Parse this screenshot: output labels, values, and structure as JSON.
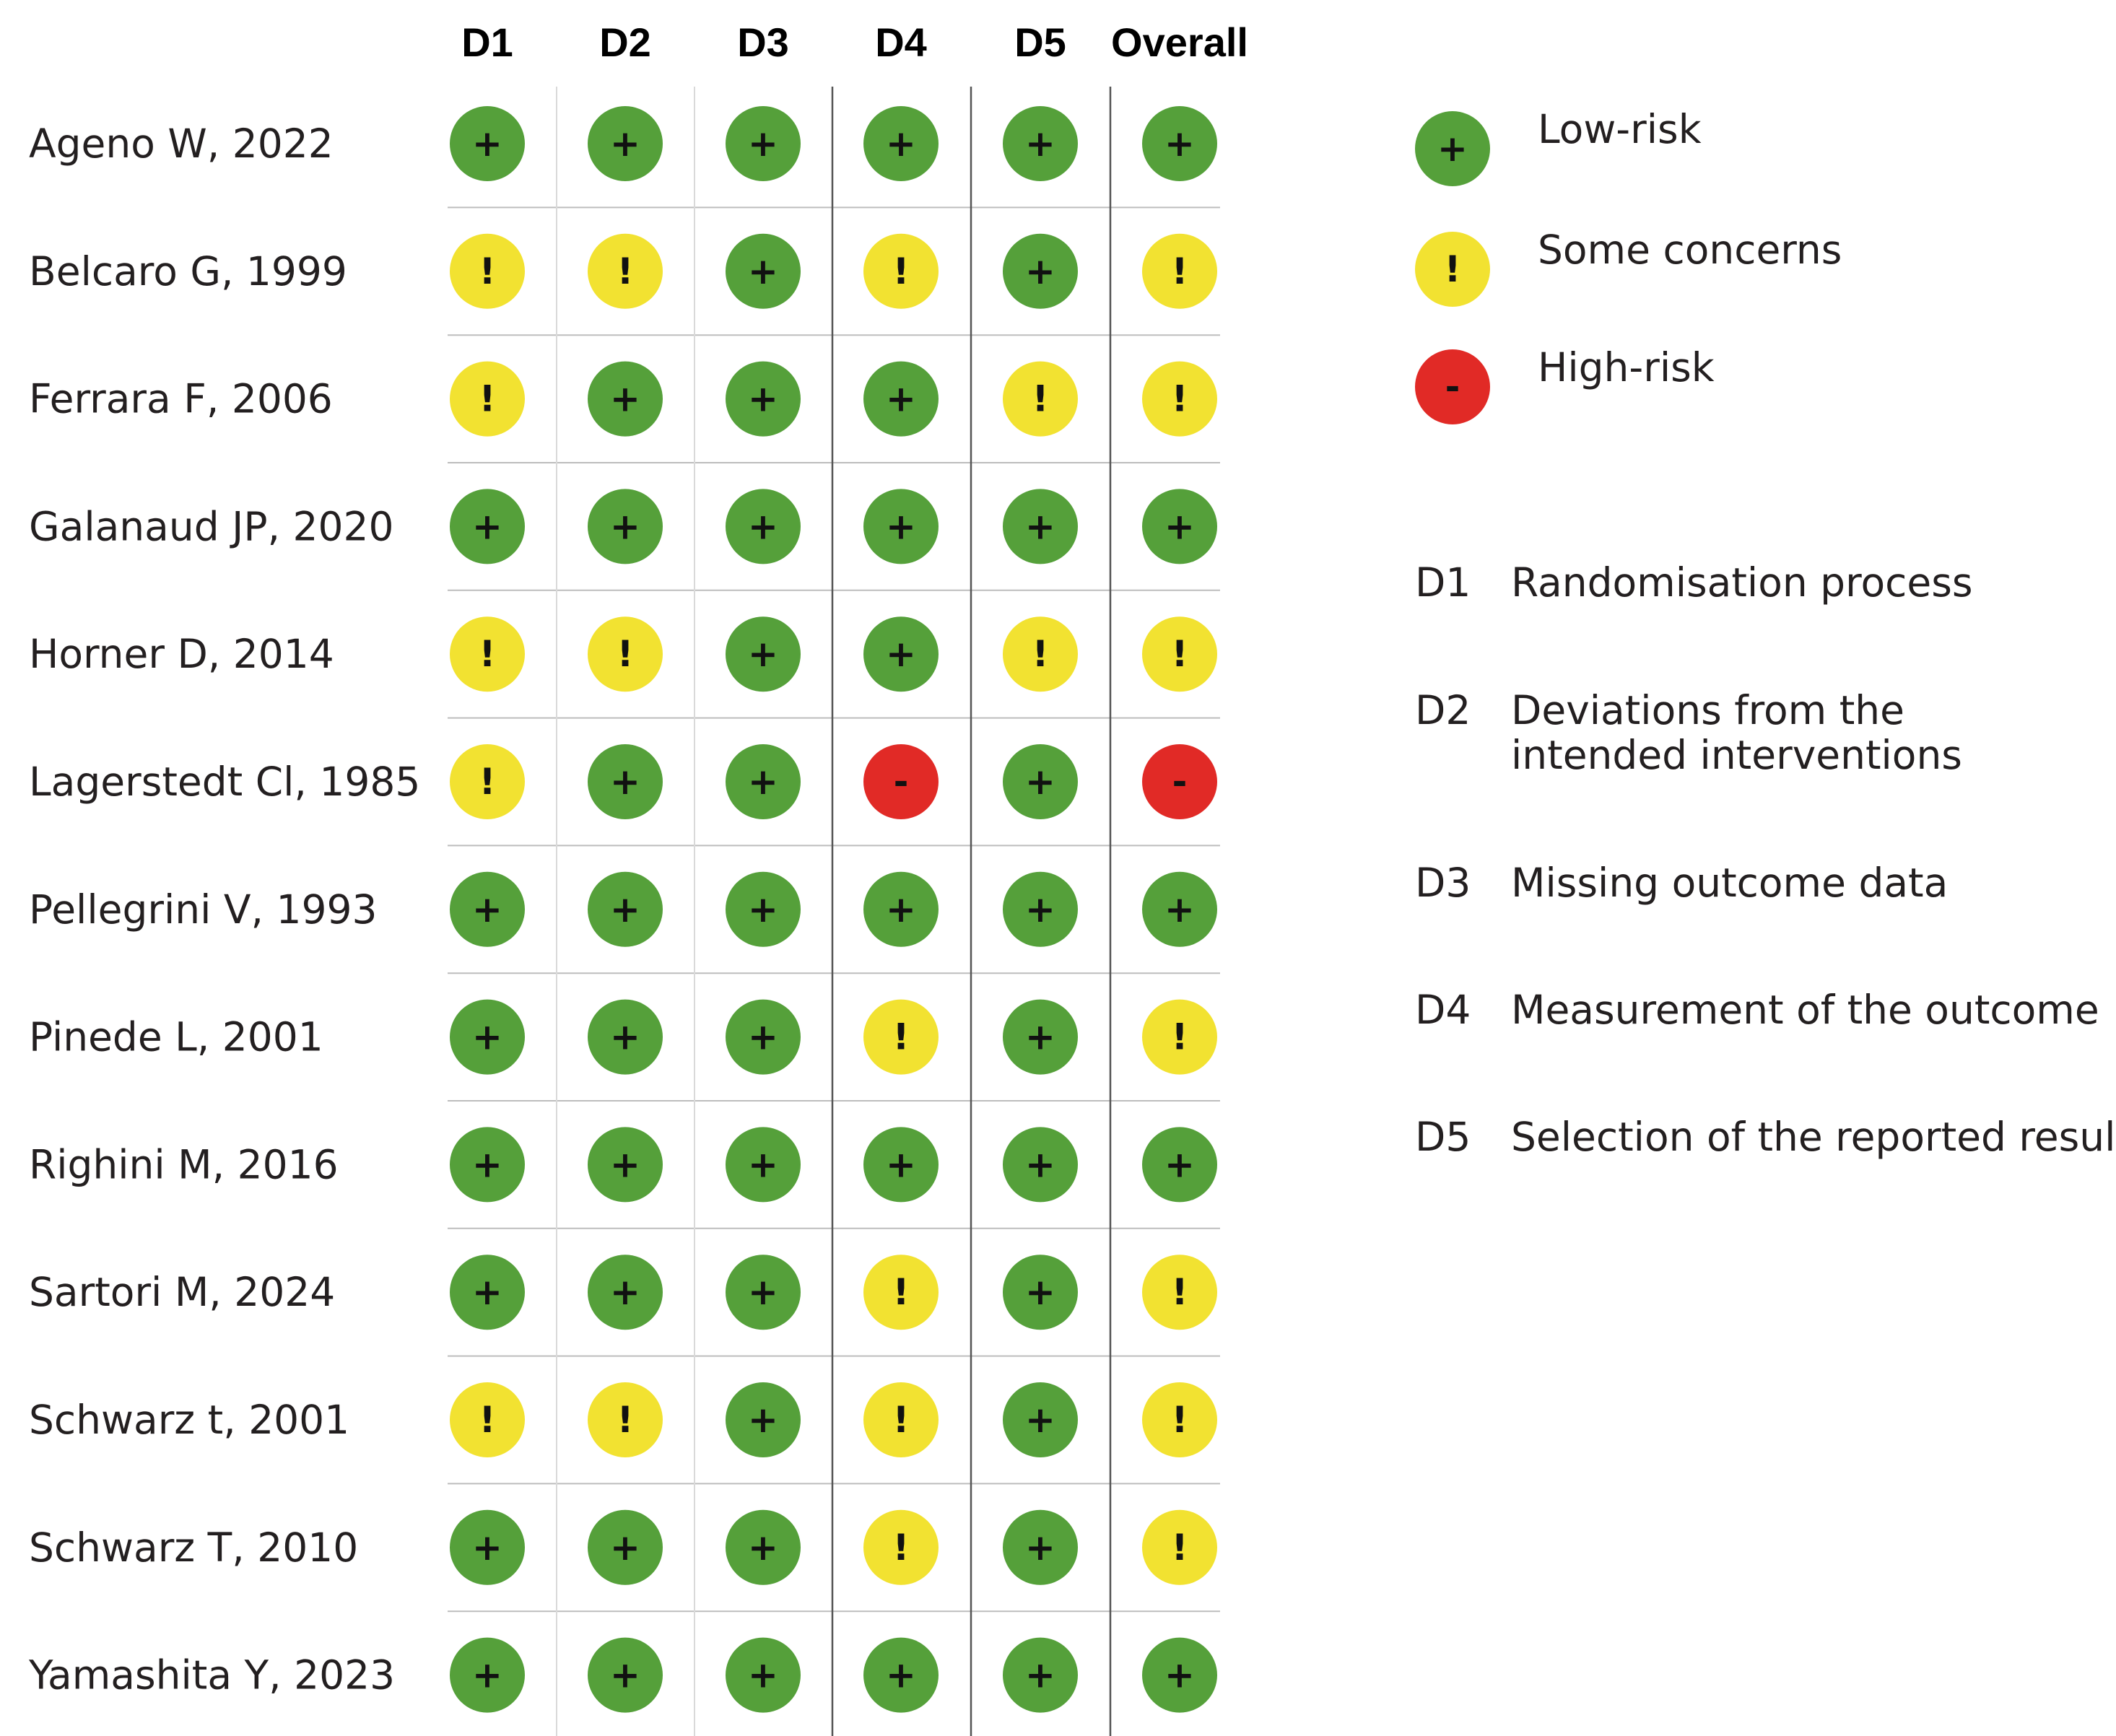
{
  "chart_data": {
    "type": "table",
    "title": "",
    "columns": [
      "D1",
      "D2",
      "D3",
      "D4",
      "D5",
      "Overall"
    ],
    "studies": [
      {
        "label": "Ageno W, 2022",
        "judgements": [
          "low",
          "low",
          "low",
          "low",
          "low",
          "low"
        ]
      },
      {
        "label": "Belcaro G, 1999",
        "judgements": [
          "some",
          "some",
          "low",
          "some",
          "low",
          "some"
        ]
      },
      {
        "label": "Ferrara F, 2006",
        "judgements": [
          "some",
          "low",
          "low",
          "low",
          "some",
          "some"
        ]
      },
      {
        "label": "Galanaud JP, 2020",
        "judgements": [
          "low",
          "low",
          "low",
          "low",
          "low",
          "low"
        ]
      },
      {
        "label": "Horner D, 2014",
        "judgements": [
          "some",
          "some",
          "low",
          "low",
          "some",
          "some"
        ]
      },
      {
        "label": "Lagerstedt Cl, 1985",
        "judgements": [
          "some",
          "low",
          "low",
          "high",
          "low",
          "high"
        ]
      },
      {
        "label": "Pellegrini V, 1993",
        "judgements": [
          "low",
          "low",
          "low",
          "low",
          "low",
          "low"
        ]
      },
      {
        "label": "Pinede L, 2001",
        "judgements": [
          "low",
          "low",
          "low",
          "some",
          "low",
          "some"
        ]
      },
      {
        "label": "Righini M, 2016",
        "judgements": [
          "low",
          "low",
          "low",
          "low",
          "low",
          "low"
        ]
      },
      {
        "label": "Sartori M, 2024",
        "judgements": [
          "low",
          "low",
          "low",
          "some",
          "low",
          "some"
        ]
      },
      {
        "label": "Schwarz t, 2001",
        "judgements": [
          "some",
          "some",
          "low",
          "some",
          "low",
          "some"
        ]
      },
      {
        "label": "Schwarz T, 2010",
        "judgements": [
          "low",
          "low",
          "low",
          "some",
          "low",
          "some"
        ]
      },
      {
        "label": "Yamashita Y, 2023",
        "judgements": [
          "low",
          "low",
          "low",
          "low",
          "low",
          "low"
        ]
      }
    ],
    "judgement_styles": {
      "low": {
        "symbol": "+",
        "color": "#55a03a",
        "label": "Low-risk"
      },
      "some": {
        "symbol": "!",
        "color": "#f2e231",
        "label": "Some concerns"
      },
      "high": {
        "symbol": "-",
        "color": "#e12a26",
        "label": "High-risk"
      }
    },
    "legend_order": [
      "low",
      "some",
      "high"
    ],
    "domains": [
      {
        "code": "D1",
        "lines": [
          "Randomisation process"
        ]
      },
      {
        "code": "D2",
        "lines": [
          "Deviations from the",
          "intended interventions"
        ]
      },
      {
        "code": "D3",
        "lines": [
          "Missing outcome data"
        ]
      },
      {
        "code": "D4",
        "lines": [
          "Measurement of the outcome"
        ]
      },
      {
        "code": "D5",
        "lines": [
          "Selection of the reported result"
        ]
      }
    ]
  }
}
